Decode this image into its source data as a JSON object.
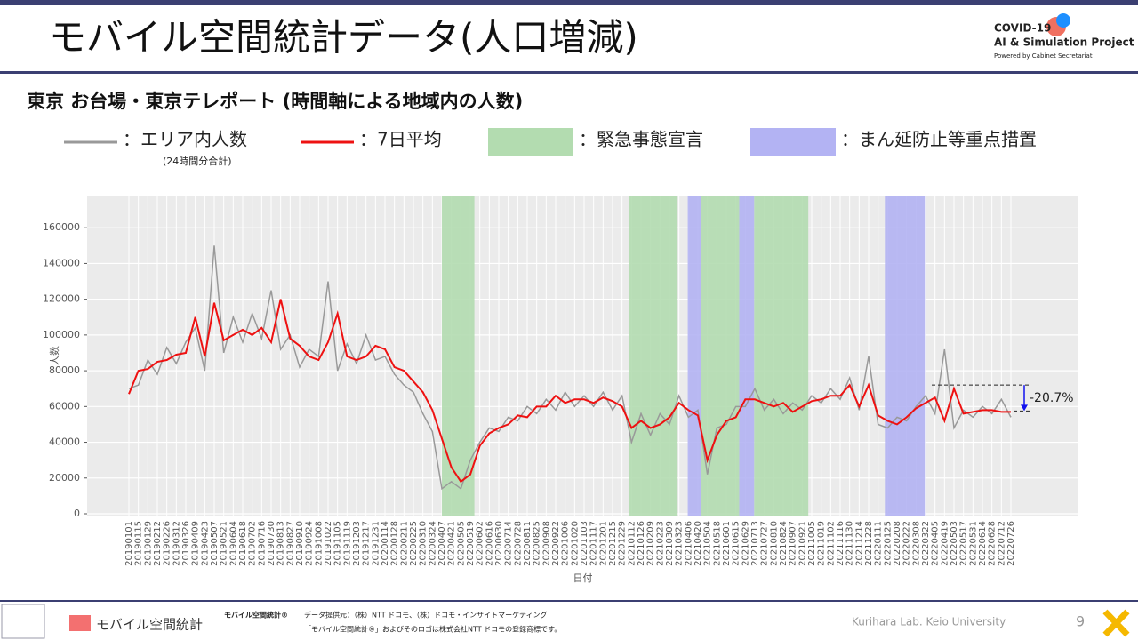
{
  "header": {
    "title": "モバイル空間統計データ(人口増減)",
    "logo_line1": "COVID-19",
    "logo_line2": "AI & Simulation Project",
    "logo_line3": "Powered by Cabinet Secretariat",
    "subtitle": "東京 お台場・東京テレポート (時間軸による地域内の人数)"
  },
  "chart_data": {
    "type": "line",
    "xlabel": "日付",
    "ylabel": "人数",
    "categories": [
      "20190101",
      "20190115",
      "20190129",
      "20190212",
      "20190226",
      "20190312",
      "20190326",
      "20190409",
      "20190423",
      "20190507",
      "20190521",
      "20190604",
      "20190618",
      "20190702",
      "20190716",
      "20190730",
      "20190813",
      "20190827",
      "20190910",
      "20190924",
      "20191008",
      "20191022",
      "20191105",
      "20191119",
      "20191203",
      "20191217",
      "20191231",
      "20200114",
      "20200128",
      "20200211",
      "20200225",
      "20200310",
      "20200324",
      "20200407",
      "20200421",
      "20200505",
      "20200519",
      "20200602",
      "20200616",
      "20200630",
      "20200714",
      "20200728",
      "20200811",
      "20200825",
      "20200908",
      "20200922",
      "20201006",
      "20201020",
      "20201103",
      "20201117",
      "20201201",
      "20201215",
      "20201229",
      "20210112",
      "20210126",
      "20210209",
      "20210223",
      "20210309",
      "20210323",
      "20210406",
      "20210420",
      "20210504",
      "20210518",
      "20210601",
      "20210615",
      "20210629",
      "20210713",
      "20210727",
      "20210810",
      "20210824",
      "20210907",
      "20210921",
      "20211005",
      "20211019",
      "20211102",
      "20211116",
      "20211130",
      "20211214",
      "20211228",
      "20220111",
      "20220125",
      "20220208",
      "20220222",
      "20220308",
      "20220322",
      "20220405",
      "20220419",
      "20220503",
      "20220517",
      "20220531",
      "20220614",
      "20220628",
      "20220712",
      "20220726"
    ],
    "series": [
      {
        "name": "：エリア内人数",
        "color": "#999999",
        "values": [
          70000,
          72000,
          86000,
          78000,
          93000,
          84000,
          96000,
          104000,
          80000,
          150000,
          90000,
          110000,
          96000,
          112000,
          98000,
          125000,
          92000,
          100000,
          82000,
          92000,
          88000,
          130000,
          80000,
          95000,
          84000,
          100000,
          86000,
          88000,
          78000,
          72000,
          68000,
          56000,
          46000,
          14000,
          18000,
          14000,
          30000,
          40000,
          48000,
          46000,
          54000,
          52000,
          60000,
          56000,
          64000,
          58000,
          68000,
          60000,
          66000,
          60000,
          68000,
          58000,
          66000,
          40000,
          56000,
          44000,
          56000,
          50000,
          66000,
          54000,
          58000,
          22000,
          48000,
          50000,
          60000,
          60000,
          70000,
          58000,
          64000,
          56000,
          62000,
          58000,
          66000,
          62000,
          70000,
          64000,
          76000,
          58000,
          88000,
          50000,
          48000,
          54000,
          52000,
          60000,
          66000,
          56000,
          92000,
          48000,
          58000,
          54000,
          60000,
          56000,
          64000,
          54000
        ]
      },
      {
        "name": "：7日平均",
        "color": "#ee1111",
        "values": [
          67000,
          80000,
          81000,
          85000,
          86000,
          89000,
          90000,
          110000,
          88000,
          118000,
          97000,
          100000,
          103000,
          100000,
          104000,
          96000,
          120000,
          98000,
          94000,
          88000,
          86000,
          96000,
          112000,
          88000,
          86000,
          88000,
          94000,
          92000,
          82000,
          80000,
          74000,
          68000,
          58000,
          42000,
          26000,
          18000,
          22000,
          38000,
          45000,
          48000,
          50000,
          55000,
          54000,
          60000,
          60000,
          66000,
          62000,
          64000,
          64000,
          62000,
          65000,
          63000,
          60000,
          48000,
          52000,
          48000,
          50000,
          54000,
          62000,
          58000,
          55000,
          30000,
          44000,
          52000,
          54000,
          64000,
          64000,
          62000,
          60000,
          62000,
          57000,
          60000,
          63000,
          64000,
          66000,
          66000,
          72000,
          60000,
          72000,
          55000,
          52000,
          50000,
          54000,
          59000,
          62000,
          65000,
          52000,
          70000,
          56000,
          57000,
          58000,
          58000,
          57000,
          57000
        ]
      }
    ],
    "legend_note": "(24時間分合計)",
    "bands": [
      {
        "name": "：緊急事態宣言",
        "color": "#b3dcb0",
        "periods": [
          [
            "20200407",
            "20200525"
          ],
          [
            "20210108",
            "20210321"
          ],
          [
            "20210425",
            "20210620"
          ],
          [
            "20210712",
            "20210930"
          ]
        ]
      },
      {
        "name": "：まん延防止等重点措置",
        "color": "#b3b3f3",
        "periods": [
          [
            "20210405",
            "20210425"
          ],
          [
            "20210620",
            "20210712"
          ],
          [
            "20220121",
            "20220321"
          ]
        ]
      }
    ],
    "annotation": {
      "text": "-20.7%",
      "from": 72000,
      "to": 57500
    },
    "ylim": [
      -1000,
      178000
    ],
    "yticks": [
      0,
      20000,
      40000,
      60000,
      80000,
      100000,
      120000,
      140000,
      160000
    ],
    "grid": true
  },
  "footer": {
    "logo": "モバイル空間統計",
    "brand": "モバイル空間統計®",
    "source": "データ提供元：（株）NTT ドコモ、（株）ドコモ・インサイトマーケティング",
    "trademark": "「モバイル空間統計®」およびそのロゴは株式会社NTT ドコモの登録商標です。",
    "lab": "Kurihara Lab. Keio University",
    "page": "9"
  }
}
